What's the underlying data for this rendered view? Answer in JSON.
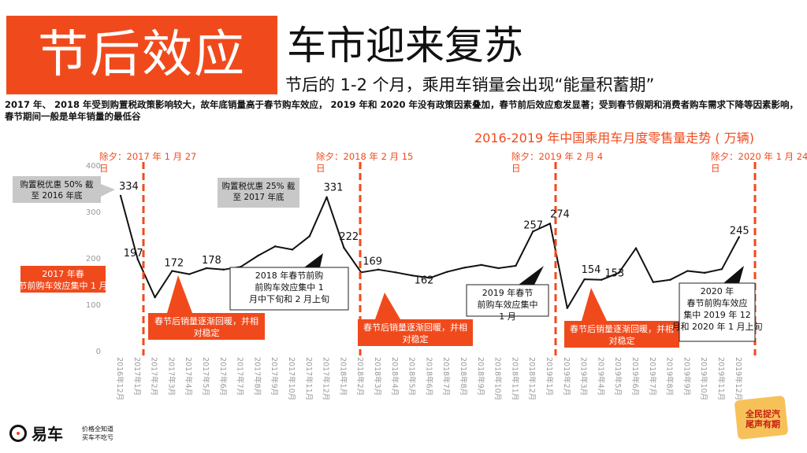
{
  "header": {
    "title_block": "节后效应",
    "title_main": "车市迎来复苏",
    "subtitle": "节后的 1-2 个月，乘用车销量会出现“能量积蓄期”",
    "description": "2017 年、 2018 年受到购置税政策影响较大，故年底销量高于春节购车效应， 2019 年和 2020 年没有政策因素叠加，春节前后效应愈发显著；受到春节假期和消费者购车需求下降等因素影响，春节期间一般是单年销量的最低谷"
  },
  "colors": {
    "accent": "#f04a1c",
    "line": "#111111",
    "axis_text": "#999999",
    "callout_gray": "#c8c8c8"
  },
  "chart_data": {
    "type": "line",
    "title": "2016-2019 年中国乘用车月度零售量走势 ( 万辆)",
    "ylim": [
      0,
      400
    ],
    "yticks": [
      "0",
      "100",
      "200",
      "300",
      "400"
    ],
    "x": [
      "2016年12月",
      "2017年1月",
      "2017年2月",
      "2017年3月",
      "2017年4月",
      "2017年5月",
      "2017年6月",
      "2017年7月",
      "2017年8月",
      "2017年9月",
      "2017年10月",
      "2017年11月",
      "2017年12月",
      "2018年1月",
      "2018年2月",
      "2018年3月",
      "2018年4月",
      "2018年5月",
      "2018年6月",
      "2018年7月",
      "2018年8月",
      "2018年9月",
      "2018年10月",
      "2018年11月",
      "2018年12月",
      "2019年1月",
      "2019年2月",
      "2019年3月",
      "2019年4月",
      "2019年5月",
      "2019年6月",
      "2019年7月",
      "2019年8月",
      "2019年9月",
      "2019年10月",
      "2019年11月",
      "2019年12月"
    ],
    "values": [
      334,
      197,
      115,
      172,
      165,
      178,
      175,
      181,
      205,
      225,
      218,
      247,
      331,
      222,
      169,
      175,
      169,
      162,
      157,
      170,
      179,
      185,
      178,
      183,
      257,
      274,
      92,
      154,
      153,
      168,
      221,
      148,
      153,
      172,
      168,
      176,
      245
    ],
    "data_labels": [
      {
        "index": 0,
        "text": "334"
      },
      {
        "index": 1,
        "text": "197"
      },
      {
        "index": 3,
        "text": "172"
      },
      {
        "index": 5,
        "text": "178"
      },
      {
        "index": 12,
        "text": "331"
      },
      {
        "index": 13,
        "text": "222"
      },
      {
        "index": 14,
        "text": "169"
      },
      {
        "index": 17,
        "text": "162"
      },
      {
        "index": 24,
        "text": "257"
      },
      {
        "index": 25,
        "text": "274"
      },
      {
        "index": 27,
        "text": "154"
      },
      {
        "index": 28,
        "text": "153"
      },
      {
        "index": 36,
        "text": "245"
      }
    ],
    "markers": [
      {
        "after_index": 1,
        "label": "除夕：2017 年 1 月 27 日"
      },
      {
        "after_index": 13,
        "label": "除夕：2018 年 2 月 15 日"
      },
      {
        "after_index": 25,
        "label": "除夕：2019 年 2 月 4 日"
      },
      {
        "after_index": 36,
        "label": "除夕：2020 年 1 月 24 日"
      }
    ],
    "annotations": {
      "gray_callouts": [
        "购置税优惠 50% 截至 2016 年底",
        "购置税优惠 25% 截至 2017 年底"
      ],
      "orange_boxes": [
        "2017 年春节前购车效应集中 1 月",
        "春节后销量逐渐回暖，并相对稳定",
        "春节后销量逐渐回暖，并相对稳定",
        "春节后销量逐渐回暖，并相对稳定"
      ],
      "white_boxes": [
        "2018 年春节前购车效应集中 1 月中下旬和 2 月上旬",
        "2019 年春节前购车效应集中 1 月",
        "2020 年春节前购车效应集中 2019 年 12 月和 2020 年 1 月上旬"
      ]
    }
  },
  "footer": {
    "logo_name": "易车",
    "logo_slogan_1": "价格全知道",
    "logo_slogan_2": "买车不吃亏",
    "badge_line_1": "全民捉汽",
    "badge_line_2": "尾声有期"
  }
}
